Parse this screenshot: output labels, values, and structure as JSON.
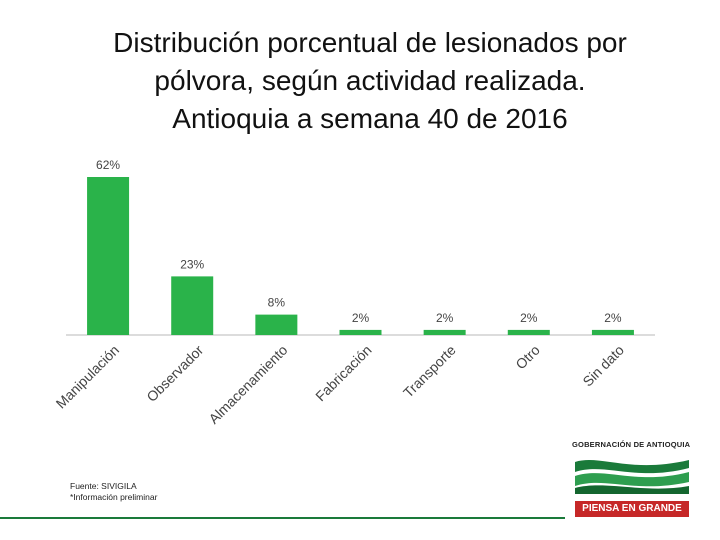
{
  "slide": {
    "title_lines": [
      "Distribución porcentual de lesionados por",
      "pólvora, según actividad realizada.",
      "Antioquia a semana 40 de 2016"
    ],
    "footnote_source": "Fuente: SIVIGILA",
    "footnote_note": "*Información preliminar"
  },
  "chart_data": {
    "type": "bar",
    "title": "Distribución porcentual de lesionados por pólvora, según actividad realizada. Antioquia a semana 40 de 2016",
    "categories": [
      "Manipulación",
      "Observador",
      "Almacenamiento",
      "Fabricación",
      "Transporte",
      "Otro",
      "Sin dato"
    ],
    "values": [
      62,
      23,
      8,
      2,
      2,
      2,
      2
    ],
    "data_labels": [
      "62%",
      "23%",
      "8%",
      "2%",
      "2%",
      "2%",
      "2%"
    ],
    "unit": "%",
    "xlabel": "",
    "ylabel": "",
    "ylim": [
      0,
      62
    ],
    "grid": false,
    "legend": "none",
    "bar_color": "#2ab34a"
  },
  "logo": {
    "org": "GOBERNACIÓN DE ANTIOQUIA",
    "slogan": "PIENSA EN GRANDE",
    "accent": "#1a7a3a",
    "band_color": "#c62828"
  }
}
